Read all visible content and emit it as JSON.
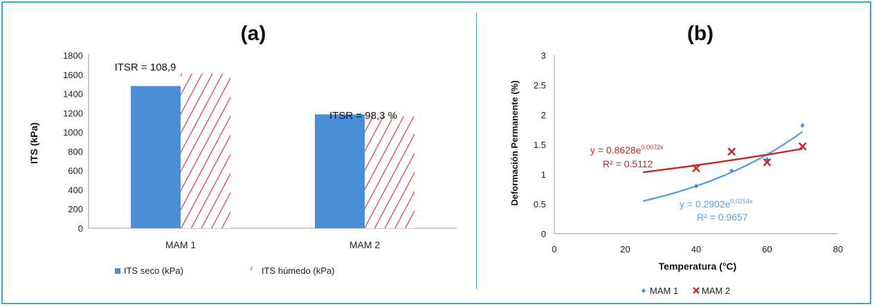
{
  "chart_data": [
    {
      "type": "bar",
      "title": "(a)",
      "ylabel": "ITS (kPa)",
      "xlabel": "",
      "ylim": [
        0,
        1800
      ],
      "yticks": [
        0,
        200,
        400,
        600,
        800,
        1000,
        1200,
        1400,
        1600,
        1800
      ],
      "categories": [
        "MAM 1",
        "MAM 2"
      ],
      "series": [
        {
          "name": "ITS seco (kPa)",
          "values": [
            1480,
            1185
          ],
          "color": "#4a8fd6",
          "pattern": "solid"
        },
        {
          "name": "ITS húmedo (kPa)",
          "values": [
            1610,
            1165
          ],
          "color": "#e8353a",
          "pattern": "diagonal-hatch"
        }
      ],
      "annotations": [
        "ITSR = 108,9",
        "ITSR = 98,3 %"
      ],
      "legend_position": "bottom",
      "grid": false
    },
    {
      "type": "scatter",
      "title": "(b)",
      "xlabel": "Temperatura (°C)",
      "ylabel": "Deformación Permanente (%)",
      "xlim": [
        0,
        80
      ],
      "ylim": [
        0,
        3
      ],
      "xticks": [
        0,
        20,
        40,
        60,
        80
      ],
      "yticks": [
        0,
        0.5,
        1,
        1.5,
        2,
        2.5,
        3
      ],
      "series": [
        {
          "name": "MAM 1",
          "marker": "diamond",
          "color": "#4a8fd6",
          "x": [
            40,
            50,
            60,
            70
          ],
          "y": [
            0.8,
            1.06,
            1.25,
            1.82
          ],
          "trend": {
            "type": "exponential",
            "a": 0.2902,
            "b": 0.0254,
            "x_range": [
              25,
              70
            ],
            "color": "#5aa0e0"
          },
          "equation": "y = 0.2902e",
          "equation_exp": "0.0254x",
          "r2": "R² = 0.9657"
        },
        {
          "name": "MAM 2",
          "marker": "x",
          "color": "#c8261e",
          "x": [
            40,
            50,
            60,
            70
          ],
          "y": [
            1.1,
            1.38,
            1.2,
            1.47
          ],
          "trend": {
            "type": "exponential",
            "a": 0.8628,
            "b": 0.0072,
            "x_range": [
              25,
              70
            ],
            "color": "#c8261e"
          },
          "equation": "y = 0.8628e",
          "equation_exp": "0.0072x",
          "r2": "R² = 0.5112"
        }
      ],
      "legend_position": "bottom",
      "grid": false
    }
  ]
}
